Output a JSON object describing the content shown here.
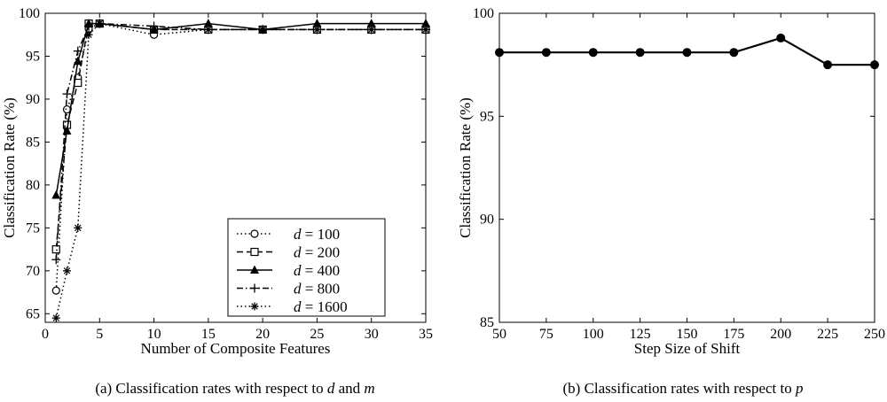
{
  "chart_data": [
    {
      "type": "line",
      "xlabel": "Number of Composite Features",
      "ylabel": "Classification Rate (%)",
      "caption": {
        "prefix": "(a)  Classification rates with respect to ",
        "var1": "d",
        "mid": " and ",
        "var2": "m"
      },
      "xlim": [
        0,
        35
      ],
      "ylim": [
        64,
        100
      ],
      "xticks": [
        0,
        5,
        10,
        15,
        20,
        25,
        30,
        35
      ],
      "yticks": [
        65,
        70,
        75,
        80,
        85,
        90,
        95,
        100
      ],
      "grid": false,
      "legend_position": "bottom-right",
      "series": [
        {
          "name": "100",
          "label_var": "d",
          "label_eq": " = ",
          "marker": "circle",
          "dash": "dotted",
          "x": [
            1,
            2,
            3,
            4,
            5,
            10,
            15,
            20,
            25,
            30,
            35
          ],
          "y": [
            67.7,
            88.8,
            92.5,
            98.2,
            98.8,
            97.5,
            98.1,
            98.1,
            98.1,
            98.1,
            98.1
          ]
        },
        {
          "name": "200",
          "label_var": "d",
          "label_eq": " = ",
          "marker": "square",
          "dash": "dashed",
          "x": [
            1,
            2,
            3,
            4,
            5,
            10,
            15,
            20,
            25,
            30,
            35
          ],
          "y": [
            72.5,
            87.0,
            91.9,
            98.8,
            98.8,
            98.1,
            98.1,
            98.1,
            98.1,
            98.1,
            98.1
          ]
        },
        {
          "name": "400",
          "label_var": "d",
          "label_eq": " = ",
          "marker": "triangle",
          "dash": "solid",
          "x": [
            1,
            2,
            3,
            4,
            5,
            10,
            15,
            20,
            25,
            30,
            35
          ],
          "y": [
            78.8,
            86.3,
            94.4,
            98.8,
            98.8,
            98.1,
            98.8,
            98.1,
            98.8,
            98.8,
            98.8
          ]
        },
        {
          "name": "800",
          "label_var": "d",
          "label_eq": " = ",
          "marker": "plus",
          "dash": "dashdot",
          "x": [
            1,
            2,
            3,
            4,
            5,
            10,
            15,
            20,
            25,
            30,
            35
          ],
          "y": [
            71.3,
            90.6,
            95.6,
            98.5,
            98.8,
            98.5,
            98.1,
            98.1,
            98.1,
            98.1,
            98.1
          ]
        },
        {
          "name": "1600",
          "label_var": "d",
          "label_eq": " = ",
          "marker": "star",
          "dash": "dotted",
          "x": [
            1,
            2,
            3,
            4,
            5,
            10,
            15,
            20,
            25,
            30,
            35
          ],
          "y": [
            64.5,
            70.0,
            75.0,
            97.5,
            98.8,
            98.1,
            98.1,
            98.1,
            98.1,
            98.1,
            98.1
          ]
        }
      ]
    },
    {
      "type": "line",
      "xlabel": "Step Size of Shift",
      "ylabel": "Classification Rate (%)",
      "caption": {
        "prefix": "(b)  Classification rates with respect to ",
        "var1": "p"
      },
      "xlim": [
        50,
        250
      ],
      "ylim": [
        85,
        100
      ],
      "xticks": [
        50,
        75,
        100,
        125,
        150,
        175,
        200,
        225,
        250
      ],
      "yticks": [
        85,
        90,
        95,
        100
      ],
      "grid": false,
      "series": [
        {
          "marker": "dot",
          "dash": "solid",
          "x": [
            50,
            75,
            100,
            125,
            150,
            175,
            200,
            225,
            250
          ],
          "y": [
            98.1,
            98.1,
            98.1,
            98.1,
            98.1,
            98.1,
            98.8,
            97.5,
            97.5
          ]
        }
      ]
    }
  ]
}
